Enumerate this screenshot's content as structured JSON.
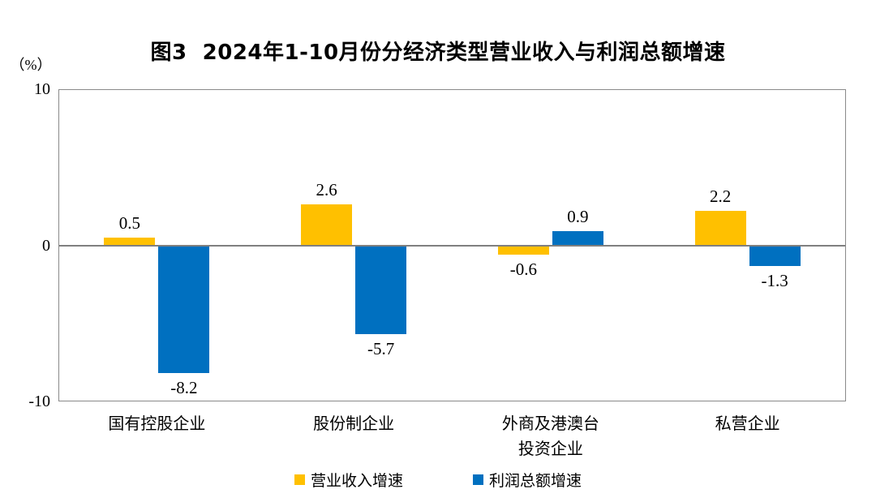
{
  "title": "图3  2024年1-10月份分经济类型营业收入与利润总额增速",
  "y_axis": {
    "unit_label": "（%）",
    "ticks": [
      10,
      0,
      -10
    ]
  },
  "chart_data": {
    "type": "bar",
    "categories": [
      "国有控股企业",
      "股份制企业",
      "外商及港澳台\n投资企业",
      "私营企业"
    ],
    "series": [
      {
        "name": "营业收入增速",
        "color": "#FFC000",
        "values": [
          0.5,
          2.6,
          -0.6,
          2.2
        ]
      },
      {
        "name": "利润总额增速",
        "color": "#0070C0",
        "values": [
          -8.2,
          -5.7,
          0.9,
          -1.3
        ]
      }
    ],
    "title": "图3  2024年1-10月份分经济类型营业收入与利润总额增速",
    "xlabel": "",
    "ylabel": "（%）",
    "ylim": [
      -10,
      10
    ],
    "grid": false,
    "legend_position": "bottom",
    "value_labels_shown": true,
    "axis_color": "#8a8a8a",
    "zero_line_color": "#7f7f7f"
  }
}
